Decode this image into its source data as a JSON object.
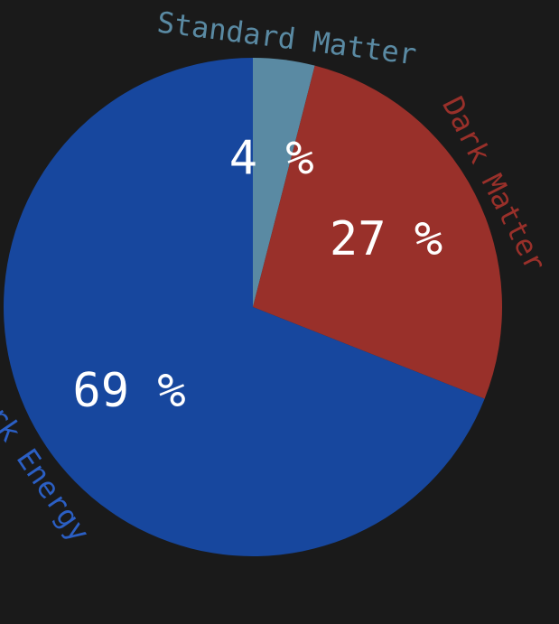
{
  "chart_data": {
    "type": "pie",
    "title": "",
    "start": "top",
    "direction": "clockwise",
    "slices": [
      {
        "label": "Standard Matter",
        "value": 4,
        "value_label": "4 %",
        "color": "#5a8aa3",
        "label_color": "#5a8aa3"
      },
      {
        "label": "Dark Matter",
        "value": 27,
        "value_label": "27 %",
        "color": "#99302a",
        "label_color": "#99302a"
      },
      {
        "label": "Dark Energy",
        "value": 69,
        "value_label": "69 %",
        "color": "#17479e",
        "label_color": "#2b5fc4"
      }
    ]
  }
}
